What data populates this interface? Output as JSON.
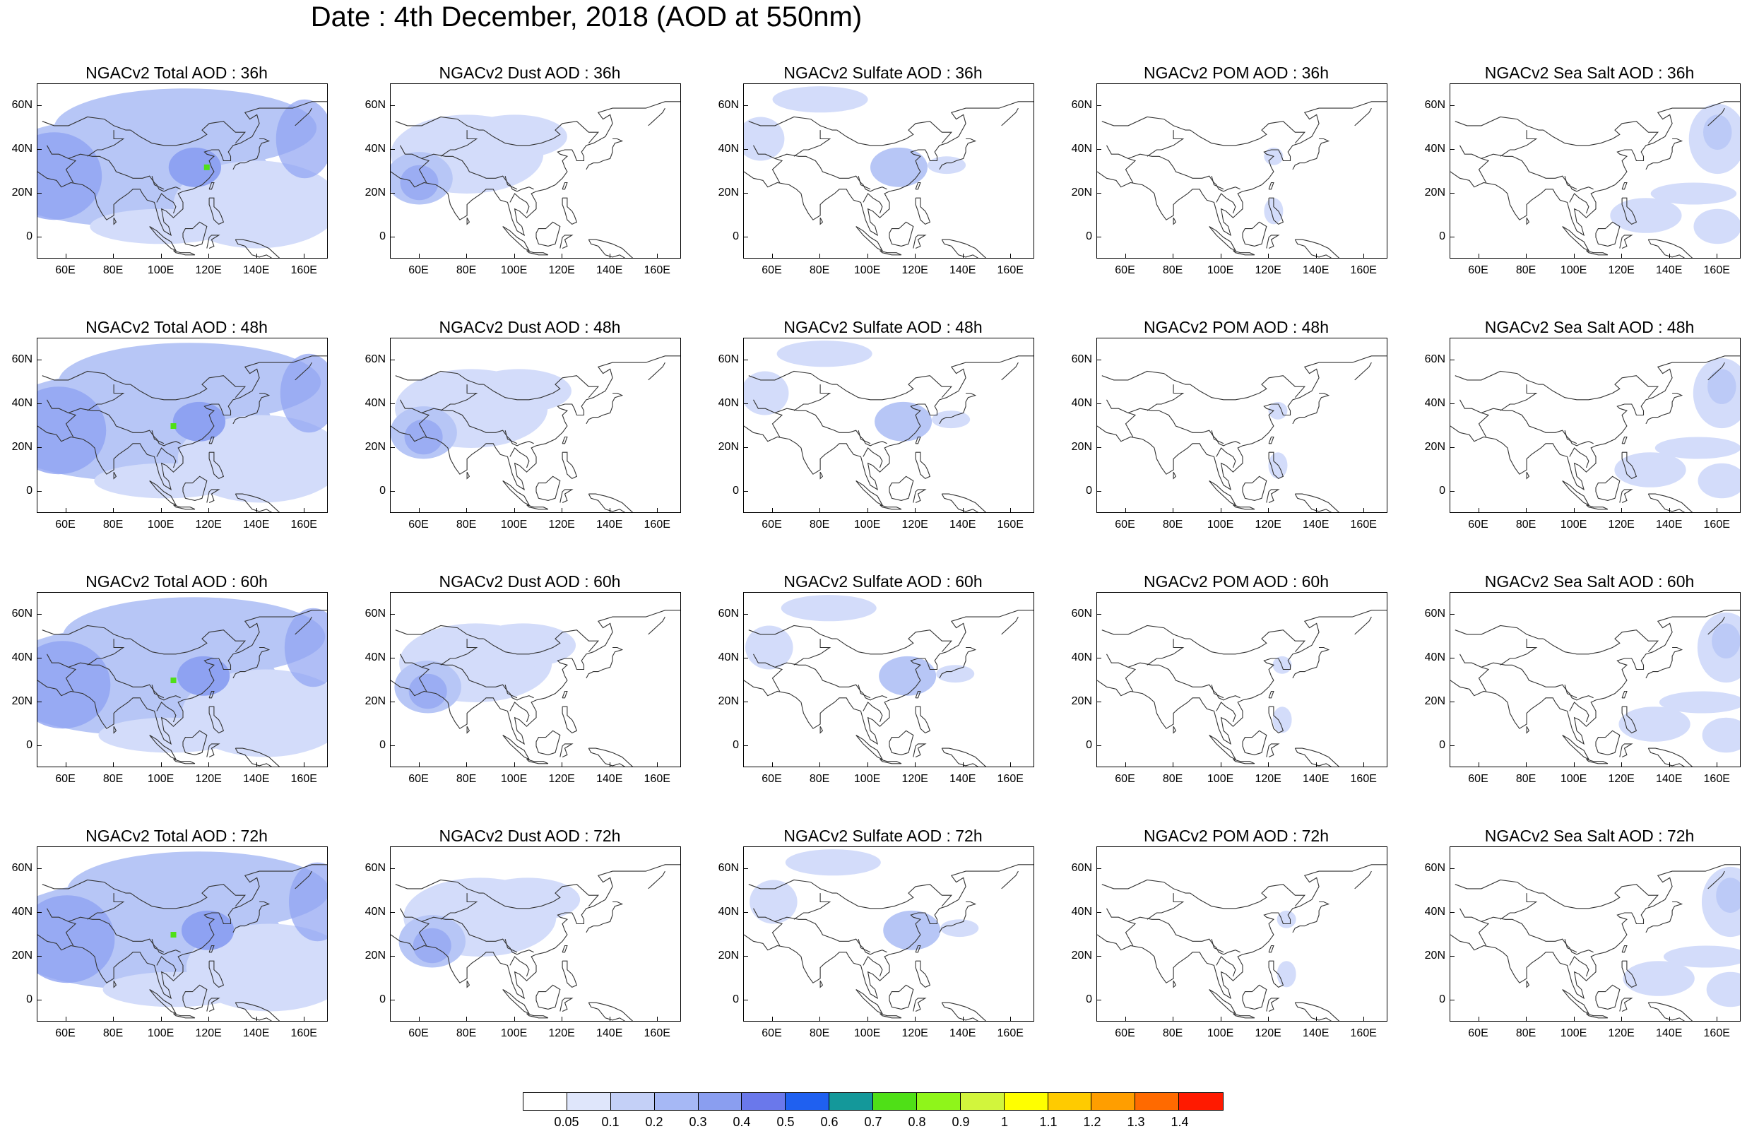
{
  "title": "Date : 4th December, 2018 (AOD at 550nm)",
  "panels": [
    [
      "NGACv2 Total AOD : 36h",
      "NGACv2 Dust AOD : 36h",
      "NGACv2 Sulfate AOD : 36h",
      "NGACv2 POM AOD : 36h",
      "NGACv2 Sea Salt AOD : 36h"
    ],
    [
      "NGACv2 Total AOD : 48h",
      "NGACv2 Dust AOD : 48h",
      "NGACv2 Sulfate AOD : 48h",
      "NGACv2 POM AOD : 48h",
      "NGACv2 Sea Salt AOD : 48h"
    ],
    [
      "NGACv2 Total AOD : 60h",
      "NGACv2 Dust AOD : 60h",
      "NGACv2 Sulfate AOD : 60h",
      "NGACv2 POM AOD : 60h",
      "NGACv2 Sea Salt AOD : 60h"
    ],
    [
      "NGACv2 Total AOD : 72h",
      "NGACv2 Dust AOD : 72h",
      "NGACv2 Sulfate AOD : 72h",
      "NGACv2 POM AOD : 72h",
      "NGACv2 Sea Salt  AOD : 72h"
    ]
  ],
  "lat_labels": [
    "60N",
    "40N",
    "20N",
    "0"
  ],
  "lon_labels": [
    "60E",
    "80E",
    "100E",
    "120E",
    "140E",
    "160E"
  ],
  "lat_values": [
    60,
    40,
    20,
    0
  ],
  "lon_values": [
    60,
    80,
    100,
    120,
    140,
    160
  ],
  "map_extent": {
    "lon": [
      48,
      170
    ],
    "lat": [
      -10,
      70
    ]
  },
  "colorbar": {
    "labels": [
      "0.05",
      "0.1",
      "0.2",
      "0.3",
      "0.4",
      "0.5",
      "0.6",
      "0.7",
      "0.8",
      "0.9",
      "1",
      "1.1",
      "1.2",
      "1.3",
      "1.4"
    ],
    "colors": [
      "#ffffff",
      "#dfe6fb",
      "#c4d0f7",
      "#a6b8f5",
      "#8a9ef0",
      "#6a78eb",
      "#1f60f0",
      "#14989a",
      "#4fe017",
      "#8ff51a",
      "#d2f53c",
      "#ffff00",
      "#ffcb00",
      "#ff9e00",
      "#ff6a00",
      "#ff1a00"
    ]
  },
  "colors": {
    "total_fill": "#b7c6f6",
    "total_dark": "#8ea2f2",
    "light_fill": "#d3dcfa",
    "hotspot_green": "#4fe017",
    "coast": "#333333"
  }
}
